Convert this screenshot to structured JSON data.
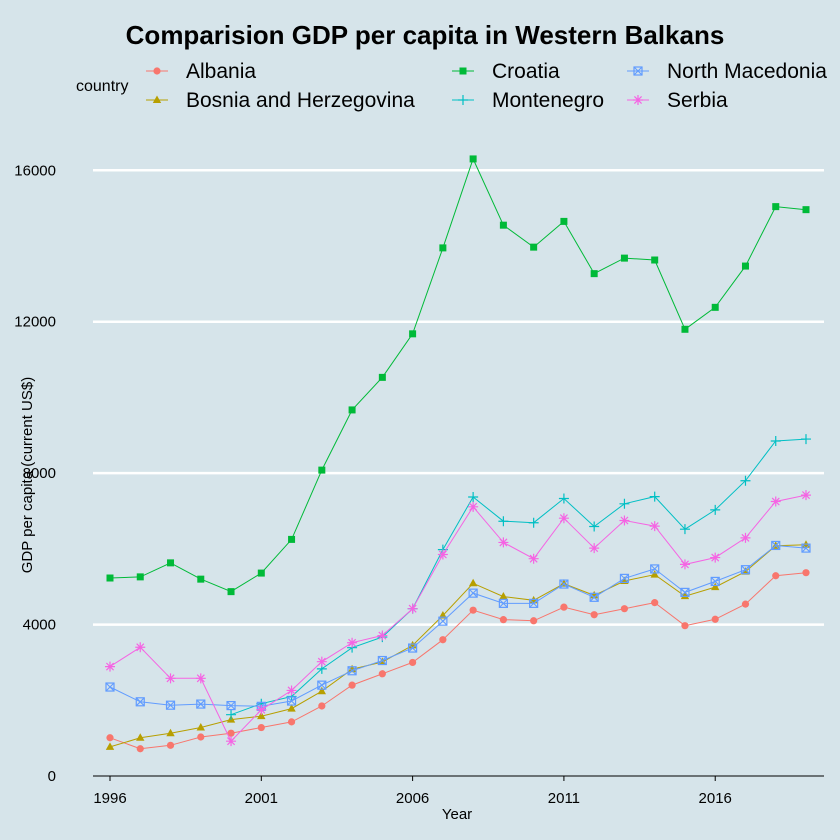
{
  "chart_data": {
    "type": "line",
    "title": "Comparision GDP per capita in Western Balkans",
    "xlabel": "Year",
    "ylabel": "GDP per capita (current US$)",
    "legend_title": "country",
    "legend_position": "top",
    "grid": "horizontal",
    "xlim": [
      1996,
      2019
    ],
    "ylim": [
      0,
      16800
    ],
    "x_ticks": [
      1996,
      2001,
      2006,
      2011,
      2016
    ],
    "y_ticks": [
      0,
      4000,
      8000,
      12000,
      16000
    ],
    "x": [
      1996,
      1997,
      1998,
      1999,
      2000,
      2001,
      2002,
      2003,
      2004,
      2005,
      2006,
      2007,
      2008,
      2009,
      2010,
      2011,
      2012,
      2013,
      2014,
      2015,
      2016,
      2017,
      2018,
      2019
    ],
    "series": [
      {
        "name": "Albania",
        "color": "#f8766d",
        "marker": "circle",
        "values": [
          1010,
          720,
          810,
          1030,
          1130,
          1280,
          1430,
          1850,
          2400,
          2700,
          3000,
          3600,
          4380,
          4130,
          4100,
          4460,
          4260,
          4420,
          4580,
          3970,
          4140,
          4540,
          5290,
          5370
        ]
      },
      {
        "name": "Bosnia and Herzegovina",
        "color": "#b79f00",
        "marker": "triangle",
        "values": [
          770,
          1010,
          1130,
          1280,
          1490,
          1580,
          1780,
          2240,
          2820,
          3010,
          3450,
          4240,
          5090,
          4740,
          4640,
          5080,
          4770,
          5150,
          5320,
          4750,
          4990,
          5400,
          6080,
          6110
        ]
      },
      {
        "name": "Croatia",
        "color": "#00ba38",
        "marker": "square",
        "values": [
          5230,
          5260,
          5630,
          5200,
          4870,
          5360,
          6250,
          8080,
          9670,
          10530,
          11680,
          13950,
          16300,
          14550,
          13970,
          14650,
          13270,
          13680,
          13630,
          11800,
          12380,
          13470,
          15040,
          14960
        ]
      },
      {
        "name": "Montenegro",
        "color": "#00bfc4",
        "marker": "plus",
        "values": [
          null,
          null,
          null,
          null,
          1620,
          1910,
          2100,
          2830,
          3390,
          3670,
          4420,
          5980,
          7370,
          6730,
          6690,
          7330,
          6590,
          7190,
          7380,
          6520,
          7030,
          7800,
          8850,
          8900
        ]
      },
      {
        "name": "North Macedonia",
        "color": "#619cff",
        "marker": "square-x",
        "values": [
          2350,
          1960,
          1870,
          1900,
          1860,
          1840,
          1980,
          2400,
          2780,
          3050,
          3380,
          4090,
          4830,
          4560,
          4560,
          5070,
          4720,
          5220,
          5470,
          4850,
          5140,
          5450,
          6090,
          6020
        ]
      },
      {
        "name": "Serbia",
        "color": "#f564e3",
        "marker": "star",
        "values": [
          2890,
          3400,
          2580,
          2580,
          920,
          1750,
          2260,
          3020,
          3520,
          3710,
          4420,
          5850,
          7110,
          6170,
          5740,
          6810,
          6020,
          6750,
          6600,
          5590,
          5770,
          6290,
          7250,
          7420
        ]
      }
    ]
  }
}
